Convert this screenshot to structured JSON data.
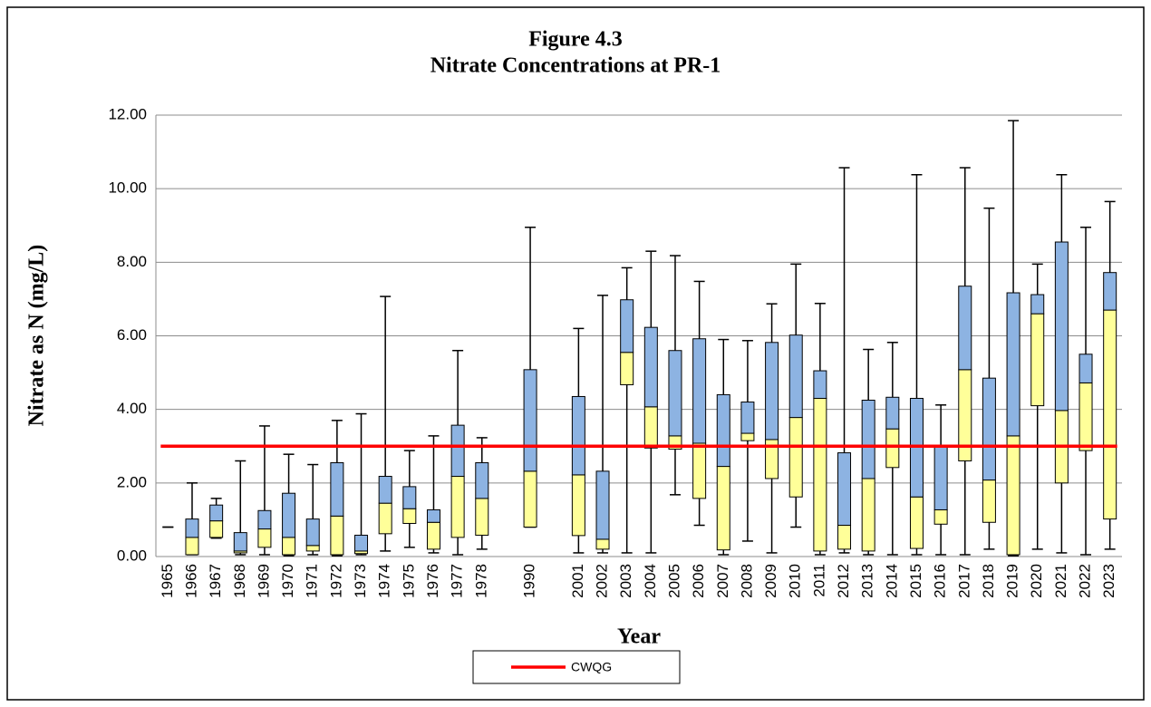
{
  "chart_data": {
    "type": "box",
    "title": "Figure 4.3",
    "subtitle": "Nitrate Concentrations at PR-1",
    "x_label": "Year",
    "y_label": "Nitrate as N (mg/L)",
    "categories": [
      "1965",
      "1966",
      "1967",
      "1968",
      "1969",
      "1970",
      "1971",
      "1972",
      "1973",
      "1974",
      "1975",
      "1976",
      "1977",
      "1978",
      null,
      "1990",
      null,
      "2001",
      "2002",
      "2003",
      "2004",
      "2005",
      "2006",
      "2007",
      "2008",
      "2009",
      "2010",
      "2011",
      "2012",
      "2013",
      "2014",
      "2015",
      "2016",
      "2017",
      "2018",
      "2019",
      "2020",
      "2021",
      "2022",
      "2023"
    ],
    "boxes": {
      "min": [
        0.8,
        0.05,
        0.5,
        0.05,
        0.05,
        0.02,
        0.05,
        0.02,
        0.05,
        0.15,
        0.25,
        0.1,
        0.05,
        0.2,
        null,
        0.8,
        null,
        0.1,
        0.1,
        0.1,
        0.1,
        1.68,
        0.85,
        0.05,
        0.42,
        0.1,
        0.8,
        0.05,
        0.1,
        0.05,
        0.05,
        0.05,
        0.05,
        0.05,
        0.2,
        0.02,
        0.2,
        0.1,
        0.05,
        0.2
      ],
      "q1": [
        0.8,
        0.05,
        0.52,
        0.1,
        0.25,
        0.05,
        0.15,
        0.05,
        0.08,
        0.62,
        0.9,
        0.2,
        0.52,
        0.58,
        null,
        0.8,
        null,
        0.57,
        0.2,
        4.67,
        2.95,
        2.92,
        1.58,
        0.18,
        3.15,
        2.12,
        1.62,
        0.15,
        0.2,
        0.15,
        2.42,
        0.22,
        0.88,
        2.6,
        0.93,
        0.05,
        4.1,
        2.0,
        2.88,
        1.02
      ],
      "median": [
        0.8,
        0.52,
        0.97,
        0.15,
        0.75,
        0.52,
        0.3,
        1.1,
        0.15,
        1.45,
        1.3,
        0.93,
        2.18,
        1.58,
        null,
        2.32,
        null,
        2.22,
        0.47,
        5.55,
        4.07,
        3.28,
        3.08,
        2.45,
        3.35,
        3.18,
        3.78,
        4.3,
        0.85,
        2.12,
        3.47,
        1.62,
        1.27,
        5.08,
        2.08,
        3.28,
        6.6,
        3.97,
        4.72,
        6.7
      ],
      "q3": [
        0.8,
        1.02,
        1.4,
        0.65,
        1.25,
        1.72,
        1.02,
        2.55,
        0.58,
        2.18,
        1.9,
        1.27,
        3.57,
        2.55,
        null,
        5.08,
        null,
        4.35,
        2.32,
        6.98,
        6.23,
        5.6,
        5.92,
        4.4,
        4.2,
        5.82,
        6.02,
        5.05,
        2.82,
        4.25,
        4.33,
        4.3,
        3.0,
        7.35,
        4.85,
        7.17,
        7.12,
        8.55,
        5.5,
        7.72
      ],
      "max": [
        0.8,
        2.0,
        1.58,
        2.6,
        3.55,
        2.78,
        2.5,
        3.7,
        3.88,
        7.07,
        2.88,
        3.28,
        5.6,
        3.23,
        null,
        8.95,
        null,
        6.2,
        7.1,
        7.85,
        8.3,
        8.18,
        7.48,
        5.9,
        5.87,
        6.87,
        7.95,
        6.88,
        10.57,
        5.63,
        5.82,
        10.38,
        4.12,
        10.57,
        9.47,
        11.85,
        7.95,
        10.38,
        8.95,
        9.65
      ]
    },
    "lower_color": "#ffff99",
    "upper_color": "#8db3e2",
    "reference_line": {
      "name": "CWQG",
      "value": 3,
      "color": "#ff0000"
    },
    "ylim": [
      0,
      12
    ],
    "yticks": [
      {
        "value": 0,
        "label": "0.00"
      },
      {
        "value": 2,
        "label": "2.00"
      },
      {
        "value": 4,
        "label": "4.00"
      },
      {
        "value": 6,
        "label": "6.00"
      },
      {
        "value": 8,
        "label": "8.00"
      },
      {
        "value": 10,
        "label": "10.00"
      },
      {
        "value": 12,
        "label": "12.00"
      }
    ],
    "grid": true,
    "legend": "bottom"
  }
}
